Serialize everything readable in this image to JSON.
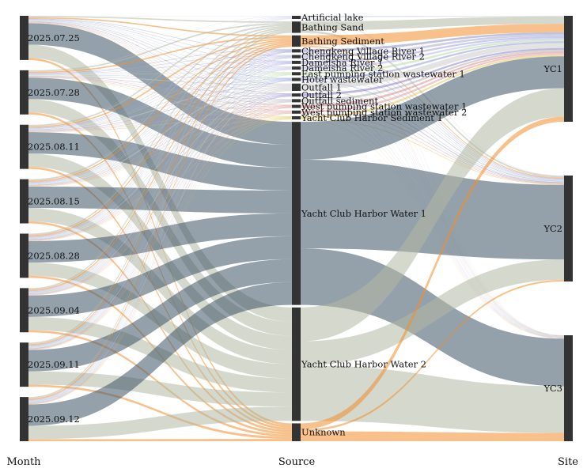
{
  "chart_data": {
    "type": "sankey",
    "title": "",
    "axes": [
      "Month",
      "Source",
      "Site"
    ],
    "months": [
      "2025.07.25",
      "2025.07.28",
      "2025.08.11",
      "2025.08.15",
      "2025.08.28",
      "2025.09.04",
      "2025.09.11",
      "2025.09.12"
    ],
    "sources": [
      {
        "name": "Artificial lake",
        "value": 0.5,
        "color": "#cfcfe8"
      },
      {
        "name": "Bathing Sand",
        "value": 2.2,
        "color": "#b3b8a3"
      },
      {
        "name": "Bathing Sediment",
        "value": 2.0,
        "color": "#f28e2b"
      },
      {
        "name": "Chengkeng Village River 1",
        "value": 0.6,
        "color": "#8c8fc7"
      },
      {
        "name": "Chengkeng Village River 2",
        "value": 0.6,
        "color": "#a6a9d6"
      },
      {
        "name": "Dameisha River 1",
        "value": 0.5,
        "color": "#9aa0dc"
      },
      {
        "name": "Dameisha River 2",
        "value": 0.5,
        "color": "#b4b8e6"
      },
      {
        "name": "East pumping station wastewater 1",
        "value": 0.5,
        "color": "#b9d9a8"
      },
      {
        "name": "Hotel wastewater",
        "value": 0.5,
        "color": "#8e9ad6"
      },
      {
        "name": "Outfall 1",
        "value": 1.3,
        "color": "#cccccc"
      },
      {
        "name": "Outfall 2",
        "value": 0.5,
        "color": "#8b7fc9"
      },
      {
        "name": "Outfall sediment",
        "value": 0.5,
        "color": "#b2b2b2"
      },
      {
        "name": "West pumping station wastewater 1",
        "value": 0.5,
        "color": "#d98c8c"
      },
      {
        "name": "West pumping station wastewater 2",
        "value": 0.5,
        "color": "#e0a0a0"
      },
      {
        "name": "Yacht Club Harbor Sediment 1",
        "value": 0.5,
        "color": "#e3c95a"
      },
      {
        "name": "Yacht Club Harbor Water 1",
        "value": 36.5,
        "color": "#3c5366"
      },
      {
        "name": "Yacht Club Harbor Water 2",
        "value": 24.5,
        "color": "#b3b8a3"
      },
      {
        "name": "Unknown",
        "value": 4.0,
        "color": "#f28e2b"
      }
    ],
    "sites": [
      {
        "name": "YC1",
        "value": 34
      },
      {
        "name": "YC2",
        "value": 34
      },
      {
        "name": "YC3",
        "value": 34
      }
    ],
    "site_source_shares": [
      {
        "Artificial lake": 0.3,
        "Bathing Sand": 4.5,
        "Bathing Sediment": 5.0,
        "Chengkeng Village River 1": 1.2,
        "Chengkeng Village River 2": 1.2,
        "Dameisha River 1": 1.0,
        "Dameisha River 2": 1.0,
        "East pumping station wastewater 1": 1.0,
        "Hotel wastewater": 1.0,
        "Outfall 1": 3.0,
        "Outfall 2": 1.0,
        "Outfall sediment": 1.0,
        "West pumping station wastewater 1": 1.0,
        "West pumping station wastewater 2": 1.0,
        "Yacht Club Harbor Sediment 1": 1.0,
        "Yacht Club Harbor Water 1": 19.0,
        "Yacht Club Harbor Water 2": 17.0,
        "Unknown": 3.0
      },
      {
        "Artificial lake": 0.2,
        "Bathing Sand": 1.0,
        "Bathing Sediment": 0.5,
        "Chengkeng Village River 1": 0.3,
        "Chengkeng Village River 2": 0.3,
        "Dameisha River 1": 0.3,
        "Dameisha River 2": 0.3,
        "East pumping station wastewater 1": 0.3,
        "Hotel wastewater": 0.3,
        "Outfall 1": 0.5,
        "Outfall 2": 0.3,
        "Outfall sediment": 0.3,
        "West pumping station wastewater 1": 0.3,
        "West pumping station wastewater 2": 0.3,
        "Yacht Club Harbor Sediment 1": 0.3,
        "Yacht Club Harbor Water 1": 44.0,
        "Yacht Club Harbor Water 2": 12.0,
        "Unknown": 1.0
      },
      {
        "Artificial lake": 0.2,
        "Bathing Sand": 0.3,
        "Bathing Sediment": 0.3,
        "Chengkeng Village River 1": 0.2,
        "Chengkeng Village River 2": 0.2,
        "Dameisha River 1": 0.2,
        "Dameisha River 2": 0.2,
        "East pumping station wastewater 1": 0.2,
        "Hotel wastewater": 0.2,
        "Outfall 1": 0.3,
        "Outfall 2": 0.2,
        "Outfall sediment": 0.2,
        "West pumping station wastewater 1": 0.2,
        "West pumping station wastewater 2": 0.2,
        "Yacht Club Harbor Sediment 1": 0.2,
        "Yacht Club Harbor Water 1": 46.0,
        "Yacht Club Harbor Water 2": 45.0,
        "Unknown": 8.0
      }
    ],
    "month_site_weights": [
      [
        1.0,
        1.0,
        1.0
      ],
      [
        1.0,
        1.0,
        1.0
      ],
      [
        1.0,
        1.0,
        1.0
      ],
      [
        1.0,
        1.0,
        1.0
      ],
      [
        1.0,
        1.0,
        1.0
      ],
      [
        1.0,
        1.0,
        1.0
      ],
      [
        1.0,
        1.0,
        1.0
      ],
      [
        1.0,
        1.0,
        1.0
      ]
    ]
  }
}
